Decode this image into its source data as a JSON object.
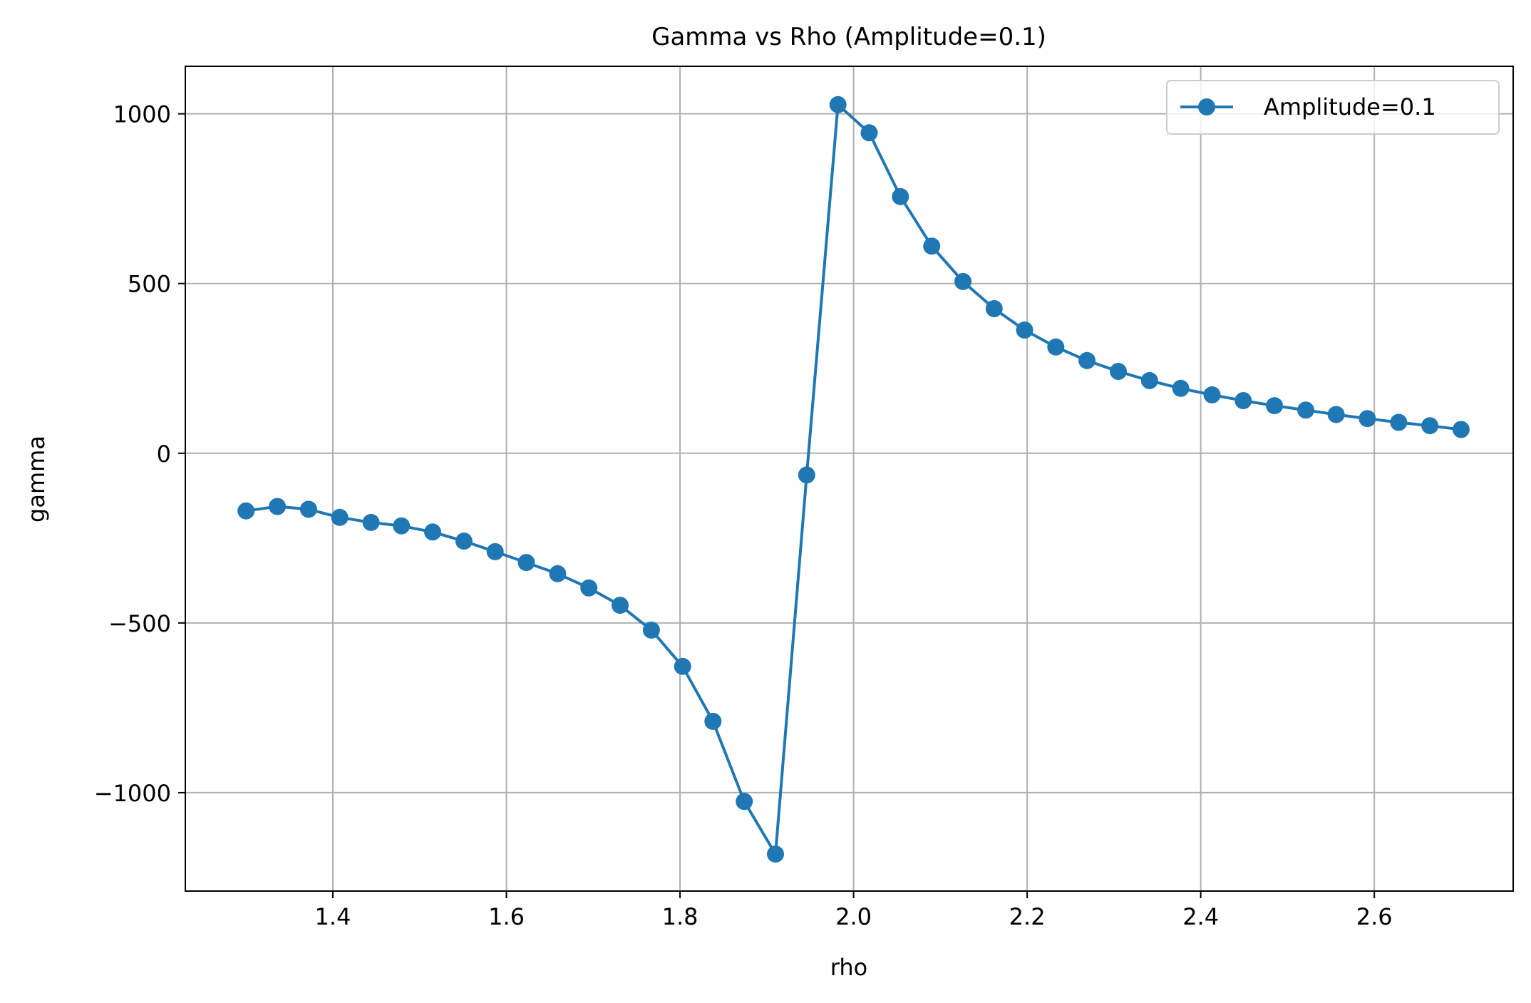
{
  "chart_data": {
    "type": "line",
    "title": "Gamma vs Rho (Amplitude=0.1)",
    "xlabel": "rho",
    "ylabel": "gamma",
    "xlim": [
      1.23,
      2.76
    ],
    "ylim": [
      -1290,
      1140
    ],
    "xticks": [
      1.4,
      1.6,
      1.8,
      2.0,
      2.2,
      2.4,
      2.6
    ],
    "xtick_labels": [
      "1.4",
      "1.6",
      "1.8",
      "2.0",
      "2.2",
      "2.4",
      "2.6"
    ],
    "yticks": [
      -1000,
      -500,
      0,
      500,
      1000
    ],
    "ytick_labels": [
      "−1000",
      "−500",
      "0",
      "500",
      "1000"
    ],
    "grid": true,
    "legend_position": "top-right",
    "series": [
      {
        "name": "Amplitude=0.1",
        "color": "#1f77b4",
        "marker": "circle",
        "x": [
          1.3,
          1.336,
          1.372,
          1.408,
          1.444,
          1.479,
          1.515,
          1.551,
          1.587,
          1.623,
          1.659,
          1.695,
          1.731,
          1.767,
          1.803,
          1.838,
          1.874,
          1.91,
          1.946,
          1.982,
          2.018,
          2.054,
          2.09,
          2.126,
          2.162,
          2.197,
          2.233,
          2.269,
          2.305,
          2.341,
          2.377,
          2.413,
          2.449,
          2.485,
          2.521,
          2.556,
          2.592,
          2.628,
          2.664,
          2.7
        ],
        "y": [
          -170,
          -157,
          -165,
          -189,
          -204,
          -214,
          -232,
          -259,
          -290,
          -322,
          -355,
          -397,
          -448,
          -521,
          -628,
          -790,
          -1026,
          -1181,
          -64,
          1027,
          944,
          756,
          610,
          506,
          426,
          363,
          313,
          273,
          241,
          214,
          191,
          172,
          155,
          140,
          127,
          114,
          102,
          91,
          81,
          70
        ]
      }
    ]
  }
}
